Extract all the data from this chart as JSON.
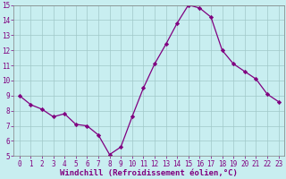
{
  "x": [
    0,
    1,
    2,
    3,
    4,
    5,
    6,
    7,
    8,
    9,
    10,
    11,
    12,
    13,
    14,
    15,
    16,
    17,
    18,
    19,
    20,
    21,
    22,
    23
  ],
  "y": [
    9.0,
    8.4,
    8.1,
    7.6,
    7.8,
    7.1,
    7.0,
    6.4,
    5.1,
    5.6,
    7.6,
    9.5,
    11.1,
    12.4,
    13.8,
    15.0,
    14.8,
    14.2,
    12.0,
    11.1,
    10.6,
    10.1,
    9.1,
    8.6
  ],
  "line_color": "#800080",
  "marker": "D",
  "marker_size": 2.2,
  "bg_color": "#c8eef0",
  "grid_color": "#a0c8c8",
  "xlabel": "Windchill (Refroidissement éolien,°C)",
  "xlim": [
    -0.5,
    23.5
  ],
  "ylim": [
    5,
    15
  ],
  "yticks": [
    5,
    6,
    7,
    8,
    9,
    10,
    11,
    12,
    13,
    14,
    15
  ],
  "xticks": [
    0,
    1,
    2,
    3,
    4,
    5,
    6,
    7,
    8,
    9,
    10,
    11,
    12,
    13,
    14,
    15,
    16,
    17,
    18,
    19,
    20,
    21,
    22,
    23
  ],
  "tick_color": "#800080",
  "label_color": "#800080",
  "xlabel_fontsize": 6.5,
  "tick_fontsize": 5.5,
  "spine_color": "#808080",
  "linewidth": 0.9
}
